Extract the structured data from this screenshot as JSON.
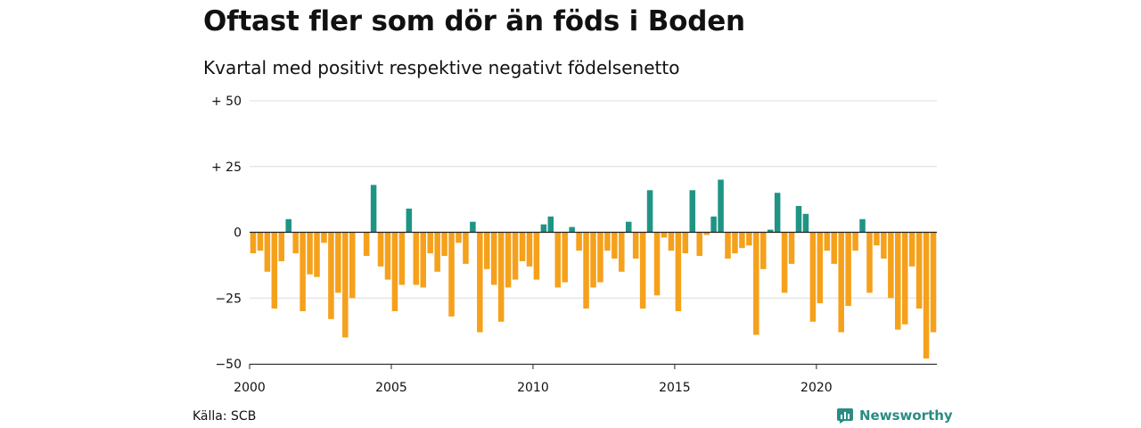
{
  "header": {
    "title": "Oftast fler som dör än föds i Boden",
    "subtitle": "Kvartal med positivt respektive negativt födelsenetto"
  },
  "footer": {
    "source": "Källa: SCB",
    "brand": "Newsworthy",
    "brand_icon": "newsworthy-logo-icon"
  },
  "chart_data": {
    "type": "bar",
    "title": "Oftast fler som dör än föds i Boden",
    "subtitle": "Kvartal med positivt respektive negativt födelsenetto",
    "xlabel": "",
    "ylabel": "",
    "ylim": [
      -50,
      50
    ],
    "xlim": [
      2000,
      2024.25
    ],
    "yticks": [
      50,
      25,
      0,
      -25,
      -50
    ],
    "ytick_labels": [
      "+ 50",
      "+ 25",
      "0",
      "−25",
      "−50"
    ],
    "xticks": [
      2000,
      2005,
      2010,
      2015,
      2020
    ],
    "xtick_labels": [
      "2000",
      "2005",
      "2010",
      "2015",
      "2020"
    ],
    "grid": true,
    "colors": {
      "positive": "#1f9485",
      "negative": "#f5a11c"
    },
    "quarter_start": 2000,
    "quarters_per_year": 4,
    "values": [
      -8,
      -7,
      -15,
      -29,
      -11,
      5,
      -8,
      -30,
      -16,
      -17,
      -4,
      -33,
      -23,
      -40,
      -25,
      0,
      -9,
      18,
      -13,
      -18,
      -30,
      -20,
      9,
      -20,
      -21,
      -8,
      -15,
      -9,
      -32,
      -4,
      -12,
      4,
      -38,
      -14,
      -20,
      -34,
      -21,
      -18,
      -11,
      -13,
      -18,
      3,
      6,
      -21,
      -19,
      2,
      -7,
      -29,
      -21,
      -19,
      -7,
      -10,
      -15,
      4,
      -10,
      -29,
      16,
      -24,
      -2,
      -7,
      -30,
      -8,
      16,
      -9,
      -1,
      6,
      20,
      -10,
      -8,
      -6,
      -5,
      -39,
      -14,
      1,
      15,
      -23,
      -12,
      10,
      7,
      -34,
      -27,
      -7,
      -12,
      -38,
      -28,
      -7,
      5,
      -23,
      -5,
      -10,
      -25,
      -37,
      -35,
      -13,
      -29,
      -48,
      -38
    ]
  }
}
